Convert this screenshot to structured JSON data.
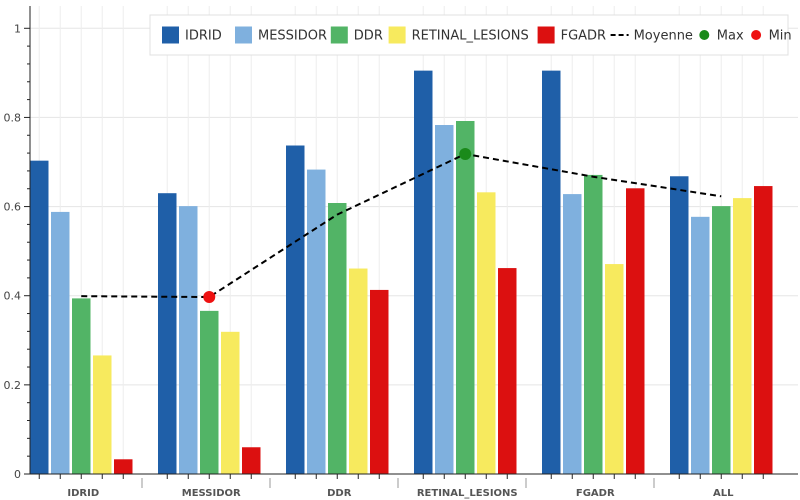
{
  "chart_data": {
    "type": "bar",
    "categories": [
      "IDRID",
      "MESSIDOR",
      "DDR",
      "RETINAL_LESIONS",
      "FGADR",
      "ALL"
    ],
    "series": [
      {
        "name": "IDRID",
        "color": "#1f5fa8",
        "values": [
          0.703,
          0.63,
          0.737,
          0.905,
          0.905,
          0.668
        ]
      },
      {
        "name": "MESSIDOR",
        "color": "#7fb0de",
        "values": [
          0.588,
          0.601,
          0.683,
          0.783,
          0.628,
          0.577
        ]
      },
      {
        "name": "DDR",
        "color": "#52b466",
        "values": [
          0.394,
          0.366,
          0.608,
          0.792,
          0.671,
          0.601
        ]
      },
      {
        "name": "RETINAL_LESIONS",
        "color": "#f7ea5e",
        "values": [
          0.266,
          0.319,
          0.461,
          0.632,
          0.471,
          0.619
        ]
      },
      {
        "name": "FGADR",
        "color": "#dc1010",
        "values": [
          0.033,
          0.06,
          0.413,
          0.462,
          0.641,
          0.646
        ]
      }
    ],
    "line": {
      "name": "Moyenne",
      "color": "#000000",
      "values": [
        0.399,
        0.397,
        0.582,
        0.718,
        0.667,
        0.623
      ]
    },
    "markers": {
      "max": {
        "name": "Max",
        "color": "#1a8a1a",
        "category": "RETINAL_LESIONS",
        "value": 0.718
      },
      "min": {
        "name": "Min",
        "color": "#ee1111",
        "category": "MESSIDOR",
        "value": 0.397
      }
    },
    "ylim": [
      0,
      1.05
    ],
    "yticks": [
      0,
      0.2,
      0.4,
      0.6,
      0.8,
      1
    ],
    "ytick_labels": [
      "0",
      "0.2",
      "0.4",
      "0.6",
      "0.8",
      "1"
    ],
    "grid": true,
    "legend_position": "top-right",
    "title": "",
    "xlabel": "",
    "ylabel": ""
  }
}
